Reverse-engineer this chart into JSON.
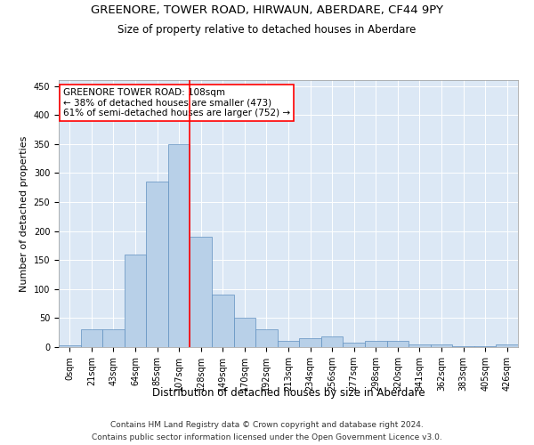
{
  "title1": "GREENORE, TOWER ROAD, HIRWAUN, ABERDARE, CF44 9PY",
  "title2": "Size of property relative to detached houses in Aberdare",
  "xlabel": "Distribution of detached houses by size in Aberdare",
  "ylabel": "Number of detached properties",
  "bin_labels": [
    "0sqm",
    "21sqm",
    "43sqm",
    "64sqm",
    "85sqm",
    "107sqm",
    "128sqm",
    "149sqm",
    "170sqm",
    "192sqm",
    "213sqm",
    "234sqm",
    "256sqm",
    "277sqm",
    "298sqm",
    "320sqm",
    "341sqm",
    "362sqm",
    "383sqm",
    "405sqm",
    "426sqm"
  ],
  "bar_heights": [
    3,
    30,
    30,
    160,
    285,
    350,
    190,
    90,
    50,
    30,
    10,
    15,
    18,
    7,
    10,
    10,
    5,
    5,
    2,
    2,
    5
  ],
  "bar_color": "#b8d0e8",
  "bar_edge_color": "#6090c0",
  "bar_width": 1.0,
  "vline_x": 5.5,
  "vline_color": "red",
  "annotation_text": "GREENORE TOWER ROAD: 108sqm\n← 38% of detached houses are smaller (473)\n61% of semi-detached houses are larger (752) →",
  "annotation_box_color": "white",
  "annotation_box_edgecolor": "red",
  "ylim": [
    0,
    460
  ],
  "yticks": [
    0,
    50,
    100,
    150,
    200,
    250,
    300,
    350,
    400,
    450
  ],
  "background_color": "#dce8f5",
  "footer1": "Contains HM Land Registry data © Crown copyright and database right 2024.",
  "footer2": "Contains public sector information licensed under the Open Government Licence v3.0.",
  "title1_fontsize": 9.5,
  "title2_fontsize": 8.5,
  "xlabel_fontsize": 8.5,
  "ylabel_fontsize": 8,
  "tick_fontsize": 7,
  "annotation_fontsize": 7.5,
  "footer_fontsize": 6.5
}
